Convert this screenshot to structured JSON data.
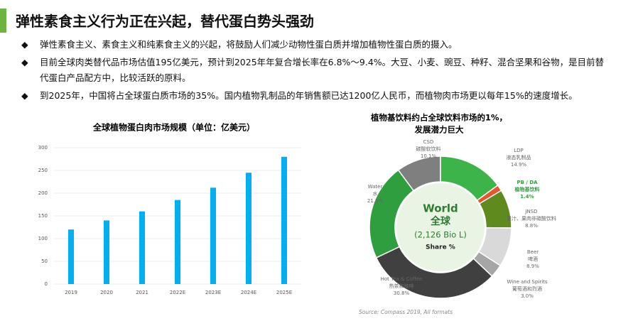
{
  "header": {
    "title": "弹性素食主义行为正在兴起，替代蛋白势头强劲"
  },
  "bullets": [
    "弹性素食主义、素食主义和纯素食主义的兴起，将鼓励人们减少动物性蛋白质并增加植物性蛋白质的摄入。",
    "目前全球肉类替代品市场估值195亿美元，预计到2025年年复合增长率在6.8%～9.4%。大豆、小麦、豌豆、种籽、混合坚果和谷物，是目前替代蛋白产品配方中，比较活跃的原料。",
    "到2025年，中国将占全球蛋白质市场的35%。国内植物乳制品的年销售额已达1200亿人民币，而植物肉市场更以每年15%的速度增长。"
  ],
  "chart_data": [
    {
      "type": "bar",
      "title": "全球植物蛋白肉市场规模（单位：亿美元）",
      "categories": [
        "2019",
        "2020",
        "2021",
        "2022E",
        "2023E",
        "2024E",
        "2025E"
      ],
      "values": [
        120,
        140,
        160,
        185,
        212,
        245,
        280
      ],
      "color": "#00b0f0",
      "ylim": [
        0,
        300
      ],
      "yticks": [
        0,
        50,
        100,
        150,
        200,
        250,
        300
      ],
      "grid": true
    },
    {
      "type": "donut",
      "title": [
        "植物基饮料约占全球饮料市场的1%，",
        "发展潜力巨大"
      ],
      "center_text": [
        "World",
        "全球",
        "(2,126 Bio L)",
        "Share %"
      ],
      "labels": [
        "CSD",
        "LDP",
        "PB / DA",
        "JNSD",
        "Beer",
        "Wine and Spirits",
        "Hot Tea & Coffee",
        "Water"
      ],
      "sublabels": [
        "碳酸软饮料",
        "液态乳制品",
        "植物基饮料",
        "果汁、果肉非碳酸饮料",
        "啤酒",
        "葡萄酒和烈酒",
        "热茶和咖啡",
        "水"
      ],
      "values": [
        10.1,
        14.9,
        1.4,
        8.8,
        8.9,
        3.0,
        30.8,
        21.9
      ],
      "value_labels": [
        "10.1%",
        "14.9%",
        "1.4%",
        "8.8%",
        "8.9%",
        "3.0%",
        "30.8%",
        "21.9%"
      ],
      "colors": [
        "#7f7f7f",
        "#3cb44a",
        "#e8542b",
        "#5f8a1e",
        "#d9d9d9",
        "#a6a6a6",
        "#404040",
        "#2e9e3e"
      ],
      "source": "Source: Compass 2019, All formats"
    }
  ]
}
